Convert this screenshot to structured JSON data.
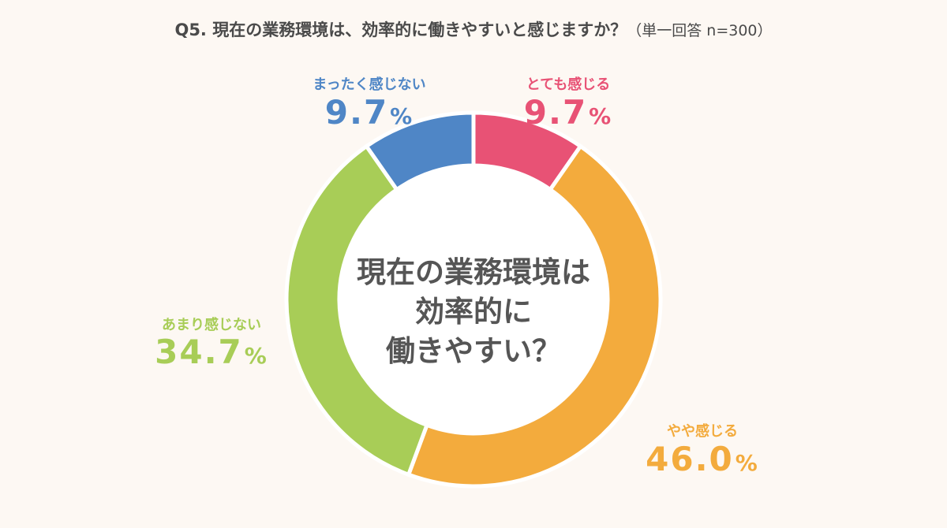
{
  "title": {
    "main": "Q5. 現在の業務環境は、効率的に働きやすいと感じますか？",
    "note": "（単一回答 n=300）"
  },
  "center_text": [
    "現在の業務環境は",
    "効率的に",
    "働きやすい？"
  ],
  "chart_data": {
    "type": "pie",
    "title": "Q5. 現在の業務環境は、効率的に働きやすいと感じますか？（単一回答 n=300）",
    "unit": "%",
    "slices": [
      {
        "label": "とても感じる",
        "value": 9.7,
        "display": "9.7",
        "color": "#e85275"
      },
      {
        "label": "やや感じる",
        "value": 46.0,
        "display": "46.0",
        "color": "#f3ab3d"
      },
      {
        "label": "あまり感じない",
        "value": 34.7,
        "display": "34.7",
        "color": "#a8cd57"
      },
      {
        "label": "まったく感じない",
        "value": 9.7,
        "display": "9.7",
        "color": "#4f86c6"
      }
    ]
  }
}
